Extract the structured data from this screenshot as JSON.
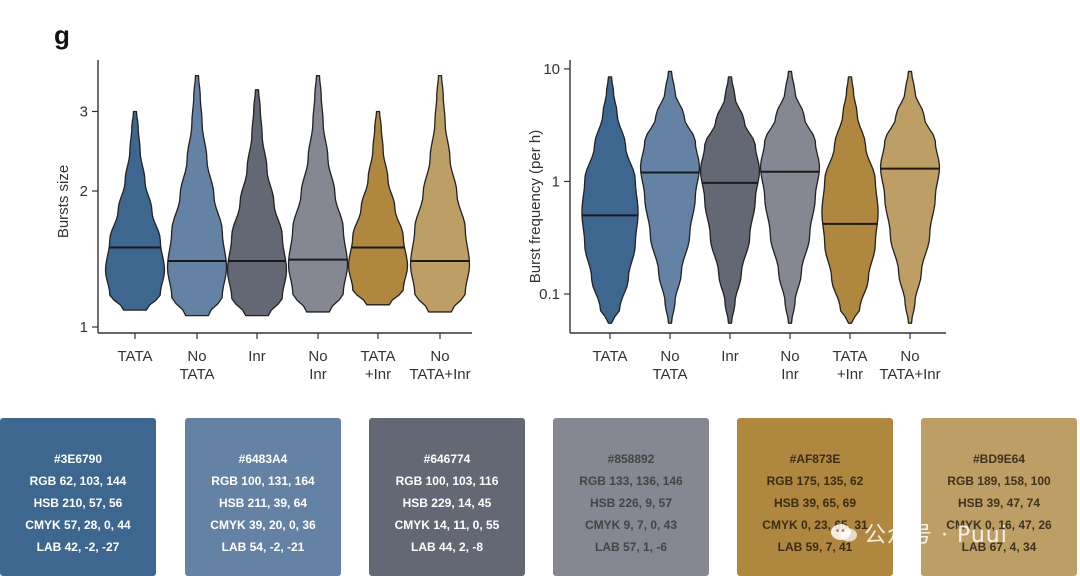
{
  "panel_label": "g",
  "colors": [
    "#3E6790",
    "#6483A4",
    "#646774",
    "#858892",
    "#AF873E",
    "#BD9E64"
  ],
  "chart_data": [
    {
      "type": "violin",
      "ylabel": "Bursts size",
      "yscale": "log",
      "ylim": [
        0.97,
        3.9
      ],
      "yticks": [
        1,
        2,
        3
      ],
      "categories": [
        "TATA",
        "No\nTATA",
        "Inr",
        "No\nInr",
        "TATA\n+Inr",
        "No\nTATA+Inr"
      ],
      "medians": [
        1.5,
        1.4,
        1.4,
        1.41,
        1.5,
        1.4
      ],
      "ranges": [
        [
          1.09,
          3.0
        ],
        [
          1.06,
          3.6
        ],
        [
          1.06,
          3.35
        ],
        [
          1.08,
          3.6
        ],
        [
          1.12,
          3.0
        ],
        [
          1.08,
          3.6
        ]
      ]
    },
    {
      "type": "violin",
      "ylabel": "Burst frequency (per h)",
      "yscale": "log",
      "ylim": [
        0.045,
        12
      ],
      "yticks": [
        0.1,
        1,
        10
      ],
      "categories": [
        "TATA",
        "No\nTATA",
        "Inr",
        "No\nInr",
        "TATA\n+Inr",
        "No\nTATA+Inr"
      ],
      "medians": [
        0.5,
        1.2,
        0.97,
        1.22,
        0.42,
        1.3
      ],
      "ranges": [
        [
          0.055,
          8.5
        ],
        [
          0.055,
          9.5
        ],
        [
          0.055,
          8.5
        ],
        [
          0.055,
          9.5
        ],
        [
          0.055,
          8.5
        ],
        [
          0.055,
          9.5
        ]
      ]
    }
  ],
  "swatches": [
    {
      "hex": "#3E6790",
      "rgb": "RGB 62, 103, 144",
      "hsb": "HSB 210, 57, 56",
      "cmyk": "CMYK 57, 28, 0, 44",
      "lab": "LAB 42, -2, -27",
      "text_color": "#ffffff"
    },
    {
      "hex": "#6483A4",
      "rgb": "RGB 100, 131, 164",
      "hsb": "HSB 211, 39, 64",
      "cmyk": "CMYK 39, 20, 0, 36",
      "lab": "LAB 54, -2, -21",
      "text_color": "#ffffff"
    },
    {
      "hex": "#646774",
      "rgb": "RGB 100, 103, 116",
      "hsb": "HSB 229, 14, 45",
      "cmyk": "CMYK 14, 11, 0, 55",
      "lab": "LAB 44, 2, -8",
      "text_color": "#ffffff"
    },
    {
      "hex": "#858892",
      "rgb": "RGB 133, 136, 146",
      "hsb": "HSB 226, 9, 57",
      "cmyk": "CMYK 9, 7, 0, 43",
      "lab": "LAB 57, 1, -6",
      "text_color": "#444444"
    },
    {
      "hex": "#AF873E",
      "rgb": "RGB 175, 135, 62",
      "hsb": "HSB 39, 65, 69",
      "cmyk": "CMYK 0, 23, 65, 31",
      "lab": "LAB 59, 7, 41",
      "text_color": "#3a2c12"
    },
    {
      "hex": "#BD9E64",
      "rgb": "RGB 189, 158, 100",
      "hsb": "HSB 39, 47, 74",
      "cmyk": "CMYK 0, 16, 47, 26",
      "lab": "LAB 67, 4, 34",
      "text_color": "#3f3320"
    }
  ],
  "watermark": "公众号 · Puui"
}
